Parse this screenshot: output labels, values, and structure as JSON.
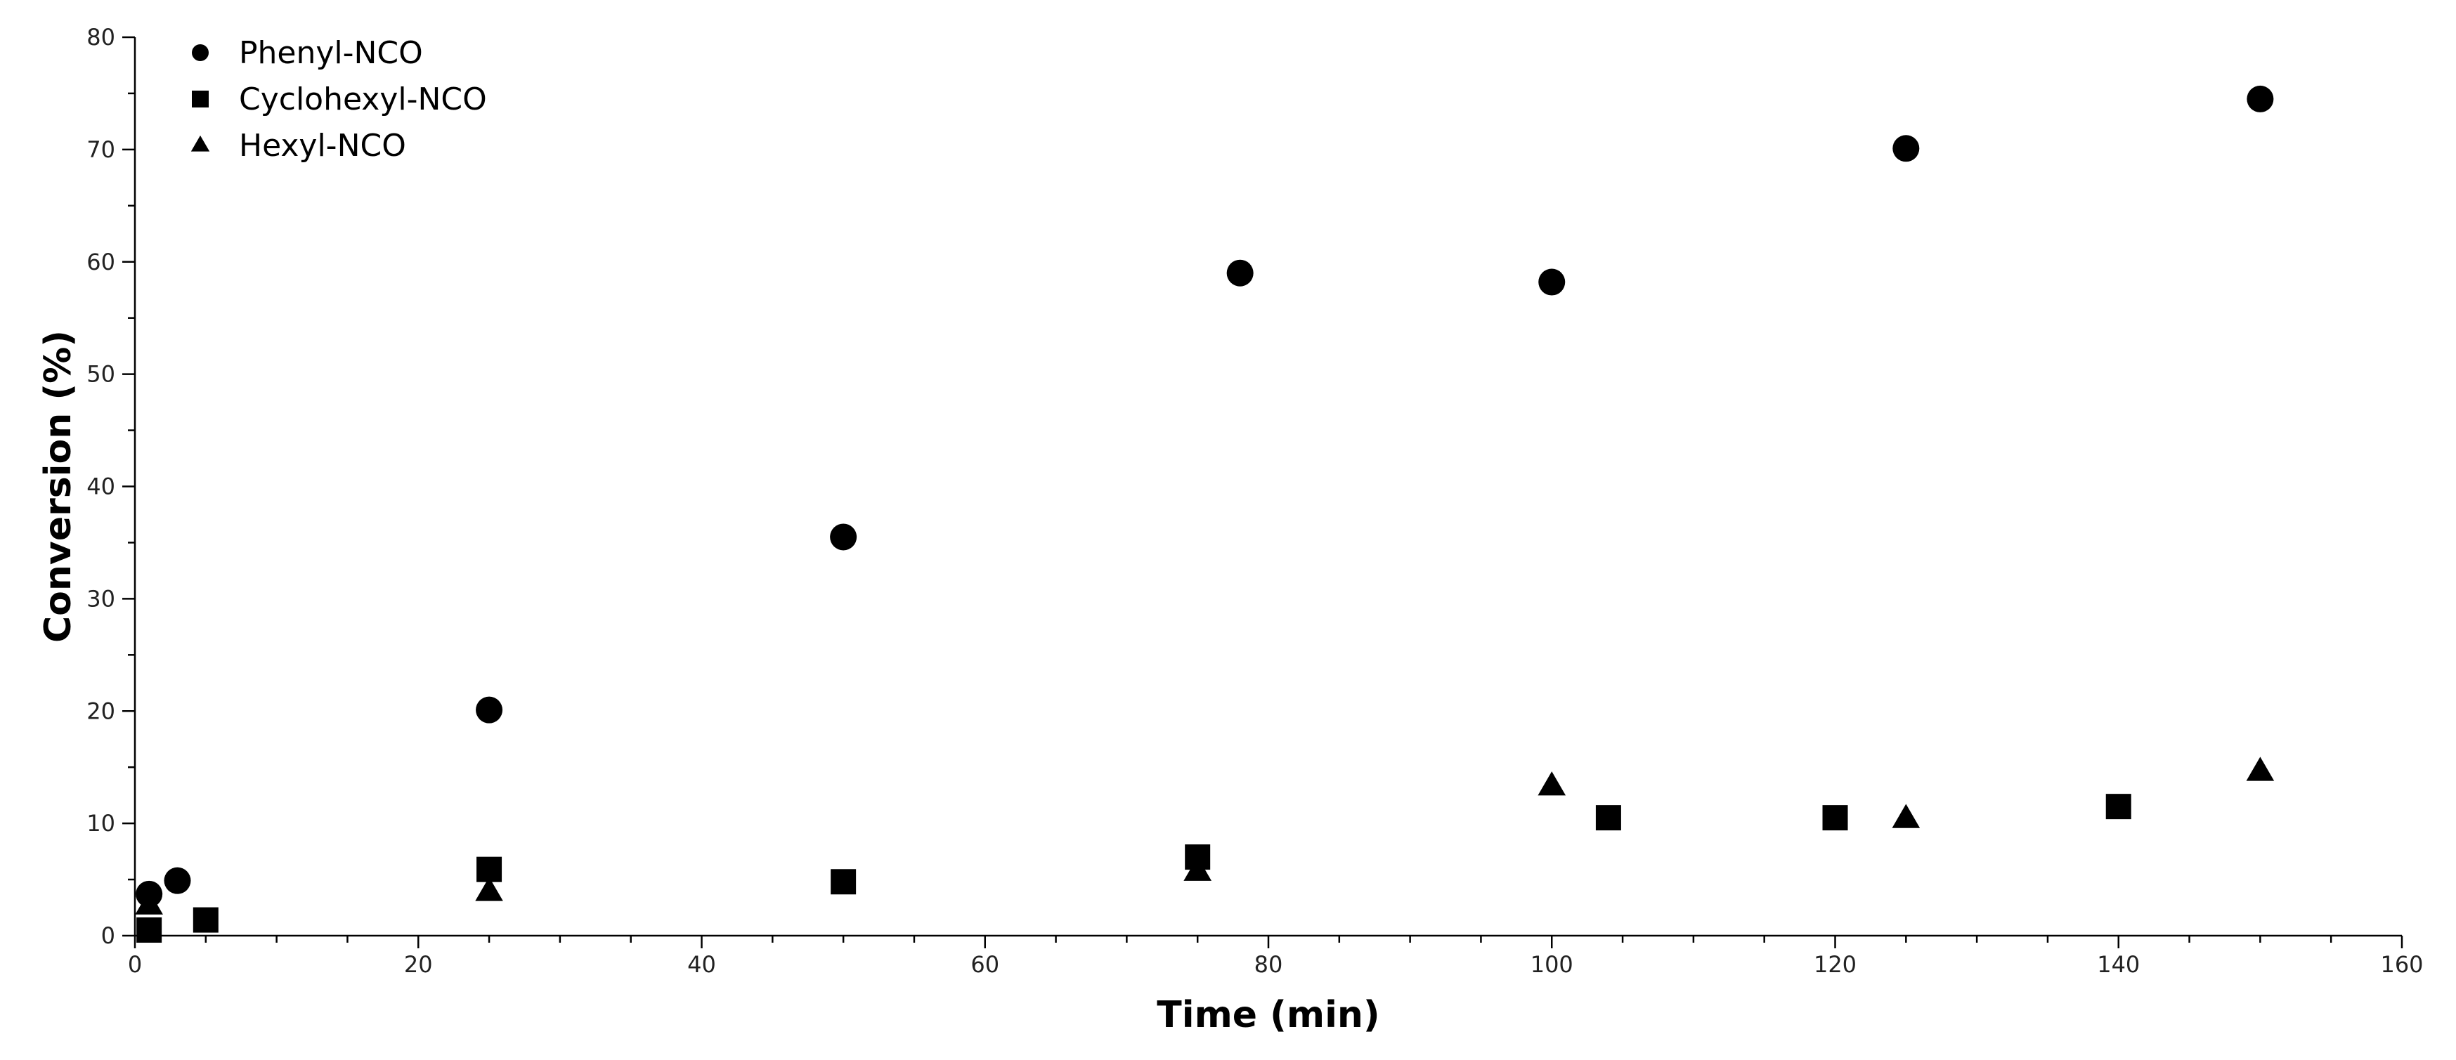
{
  "chart_data": {
    "type": "scatter",
    "xlabel": "Time (min)",
    "ylabel": "Conversion (%)",
    "xlim": [
      0,
      160
    ],
    "ylim": [
      0,
      80
    ],
    "xticks": [
      0,
      20,
      40,
      60,
      80,
      100,
      120,
      140,
      160
    ],
    "yticks": [
      0,
      10,
      20,
      30,
      40,
      50,
      60,
      70,
      80
    ],
    "grid": false,
    "legend_position": "top-left",
    "series": [
      {
        "name": "Phenyl-NCO",
        "marker": "circle",
        "color": "#000000",
        "points": [
          [
            1,
            3.7
          ],
          [
            3,
            4.9
          ],
          [
            25,
            20.1
          ],
          [
            50,
            35.5
          ],
          [
            78,
            59.0
          ],
          [
            100,
            58.2
          ],
          [
            125,
            70.1
          ],
          [
            150,
            74.5
          ]
        ]
      },
      {
        "name": "Cyclohexyl-NCO",
        "marker": "square",
        "color": "#000000",
        "points": [
          [
            1,
            0.5
          ],
          [
            5,
            1.4
          ],
          [
            25,
            5.9
          ],
          [
            50,
            4.8
          ],
          [
            75,
            7.0
          ],
          [
            104,
            10.5
          ],
          [
            120,
            10.5
          ],
          [
            140,
            11.5
          ]
        ]
      },
      {
        "name": "Hexyl-NCO",
        "marker": "triangle",
        "color": "#000000",
        "points": [
          [
            1,
            2.7
          ],
          [
            25,
            3.9
          ],
          [
            75,
            5.7
          ],
          [
            100,
            13.3
          ],
          [
            125,
            10.4
          ],
          [
            150,
            14.6
          ]
        ]
      }
    ]
  }
}
